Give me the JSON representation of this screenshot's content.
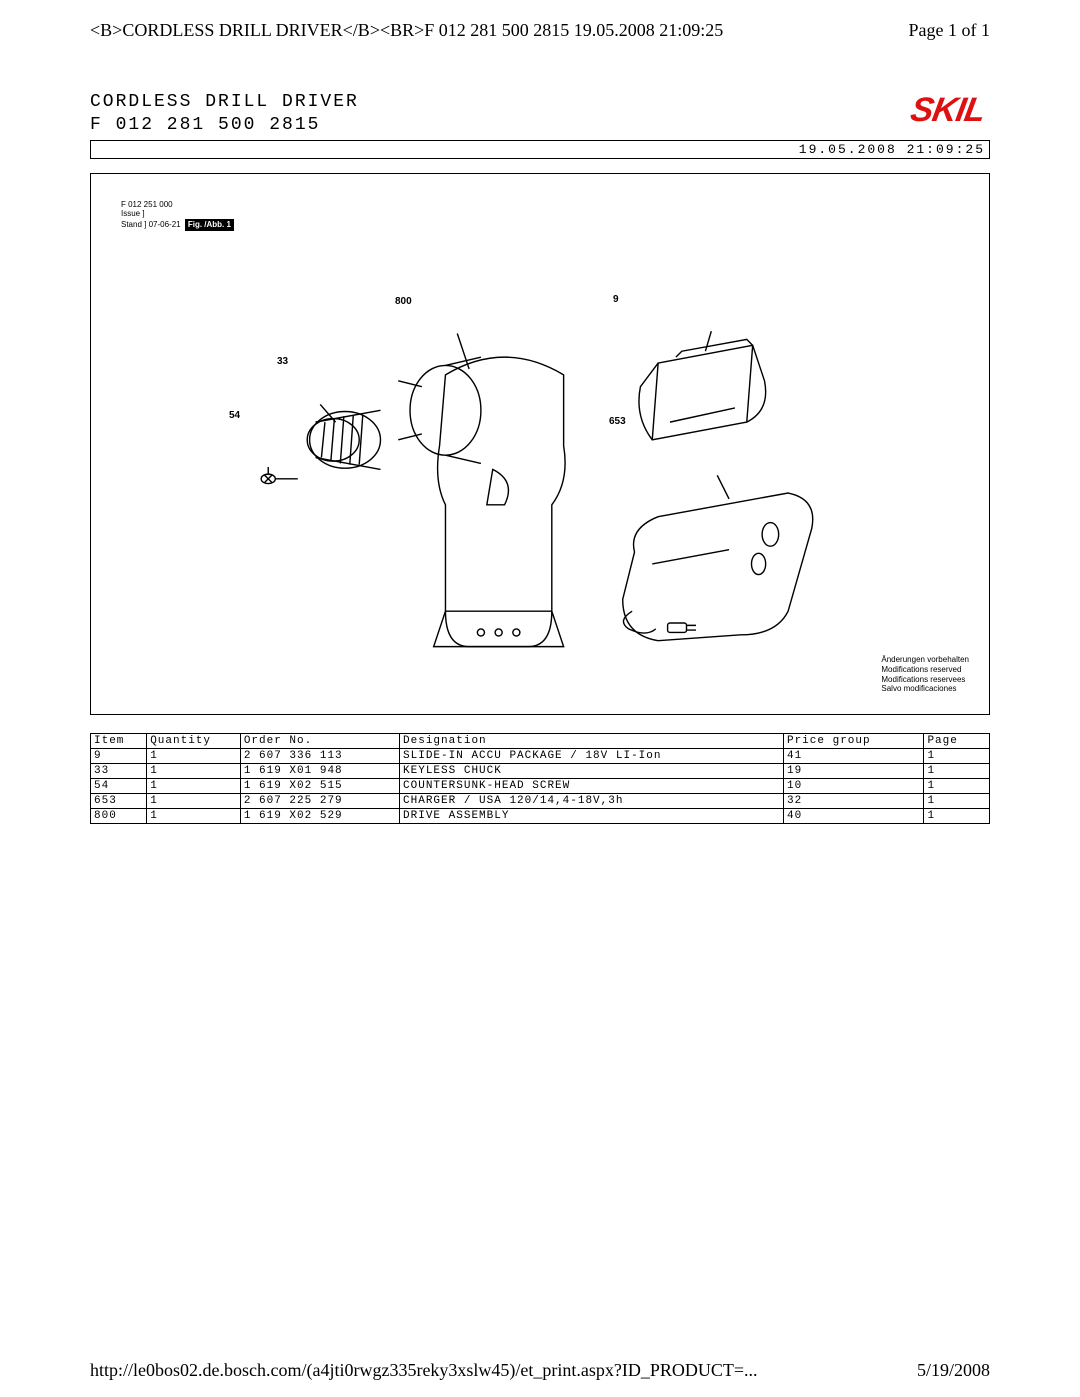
{
  "topHeader": {
    "bold": "CORDLESS DRILL DRIVER",
    "br": "<BR>",
    "rest": "F 012 281 500   2815 19.05.2008 21:09:25",
    "page": "Page 1 of 1"
  },
  "docHeader": {
    "line1": "CORDLESS DRILL DRIVER",
    "line2": "F 012 281 500   2815",
    "logo": "SKIL",
    "timestamp": "19.05.2008 21:09:25"
  },
  "figMeta": {
    "code": "F 012 251 000",
    "issue1": "Issue",
    "issue2": "Stand",
    "date": "07-06-21",
    "label": "Fig. /Abb. 1"
  },
  "callouts": {
    "c800": "800",
    "c33": "33",
    "c54": "54",
    "c9": "9",
    "c653": "653"
  },
  "modifications": {
    "l1": "Änderungen vorbehalten",
    "l2": "Modifications reserved",
    "l3": "Modifications reservees",
    "l4": "Salvo modificaciones"
  },
  "table": {
    "headers": [
      "Item",
      "Quantity",
      "Order No.",
      "Designation",
      "Price group",
      "Page"
    ],
    "rows": [
      [
        "9",
        "1",
        "2 607 336 113",
        "SLIDE-IN ACCU PACKAGE / 18V LI-Ion",
        "41",
        "1"
      ],
      [
        "33",
        "1",
        "1 619 X01 948",
        "KEYLESS CHUCK",
        "19",
        "1"
      ],
      [
        "54",
        "1",
        "1 619 X02 515",
        "COUNTERSUNK-HEAD SCREW",
        "10",
        "1"
      ],
      [
        "653",
        "1",
        "2 607 225 279",
        "CHARGER / USA 120/14,4-18V,3h",
        "32",
        "1"
      ],
      [
        "800",
        "1",
        "1 619 X02 529",
        "DRIVE ASSEMBLY",
        "40",
        "1"
      ]
    ],
    "colWidths": [
      "6%",
      "10%",
      "17%",
      "41%",
      "15%",
      "7%"
    ]
  },
  "footer": {
    "url": "http://le0bos02.de.bosch.com/(a4jti0rwgz335reky3xslw45)/et_print.aspx?ID_PRODUCT=...",
    "date": "5/19/2008"
  }
}
